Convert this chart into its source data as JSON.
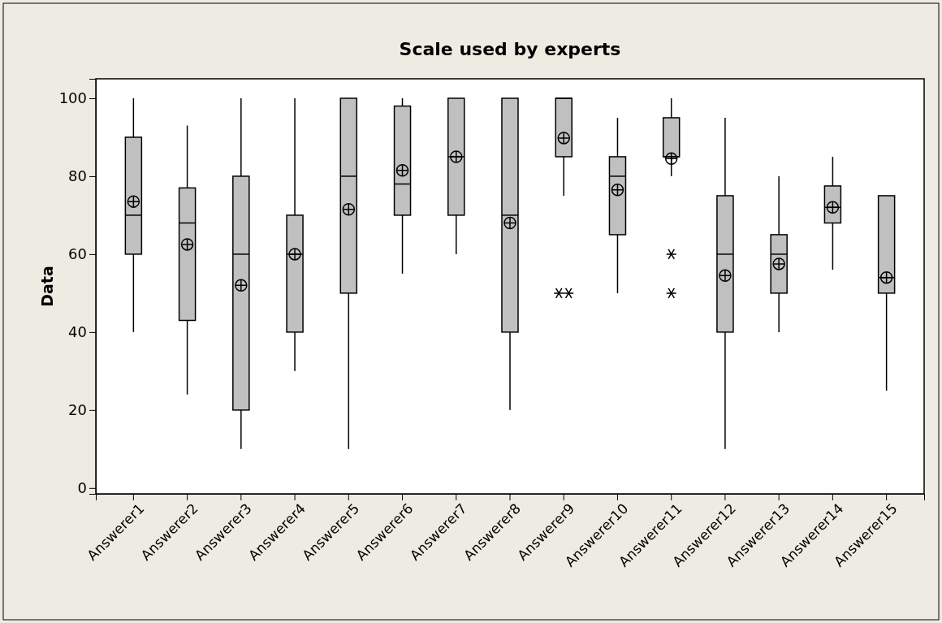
{
  "chart_data": {
    "type": "box",
    "title": "Scale used by experts",
    "ylabel": "Data",
    "categories": [
      "Answerer1",
      "Answerer2",
      "Answerer3",
      "Answerer4",
      "Answerer5",
      "Answerer6",
      "Answerer7",
      "Answerer8",
      "Answerer9",
      "Answerer10",
      "Answerer11",
      "Answerer12",
      "Answerer13",
      "Answerer14",
      "Answerer15"
    ],
    "ylim": [
      -1.5,
      105
    ],
    "yticks": [
      0,
      20,
      40,
      60,
      80,
      100
    ],
    "color": "#c0c0c0",
    "grid": false,
    "boxes": [
      {
        "low": 40,
        "q1": 60,
        "median": 70,
        "q3": 90,
        "high": 100,
        "mean": 73.5
      },
      {
        "low": 24,
        "q1": 43,
        "median": 68,
        "q3": 77,
        "high": 93,
        "mean": 62.5
      },
      {
        "low": 10,
        "q1": 20,
        "median": 60,
        "q3": 80,
        "high": 100,
        "mean": 52
      },
      {
        "low": 30,
        "q1": 40,
        "median": 60,
        "q3": 70,
        "high": 100,
        "mean": 60
      },
      {
        "low": 10,
        "q1": 50,
        "median": 80,
        "q3": 100,
        "high": 100,
        "mean": 71.5
      },
      {
        "low": 55,
        "q1": 70,
        "median": 78,
        "q3": 98,
        "high": 100,
        "mean": 81.5
      },
      {
        "low": 60,
        "q1": 70,
        "median": 85,
        "q3": 100,
        "high": 100,
        "mean": 85
      },
      {
        "low": 20,
        "q1": 40,
        "median": 70,
        "q3": 100,
        "high": 100,
        "mean": 68
      },
      {
        "low": 75,
        "q1": 85,
        "median": 100,
        "q3": 100,
        "high": 100,
        "mean": 89.8,
        "outliers": [
          50,
          50
        ]
      },
      {
        "low": 50,
        "q1": 65,
        "median": 80,
        "q3": 85,
        "high": 95,
        "mean": 76.5
      },
      {
        "low": 80,
        "q1": 85,
        "median": 85,
        "q3": 95,
        "high": 100,
        "mean": 84.5,
        "outliers": [
          60,
          50
        ]
      },
      {
        "low": 10,
        "q1": 40,
        "median": 60,
        "q3": 75,
        "high": 95,
        "mean": 54.5
      },
      {
        "low": 40,
        "q1": 50,
        "median": 60,
        "q3": 65,
        "high": 80,
        "mean": 57.5
      },
      {
        "low": 56,
        "q1": 68,
        "median": 72,
        "q3": 77.5,
        "high": 85,
        "mean": 72
      },
      {
        "low": 25,
        "q1": 50,
        "median": 54,
        "q3": 75,
        "high": 75,
        "mean": 54
      }
    ]
  }
}
